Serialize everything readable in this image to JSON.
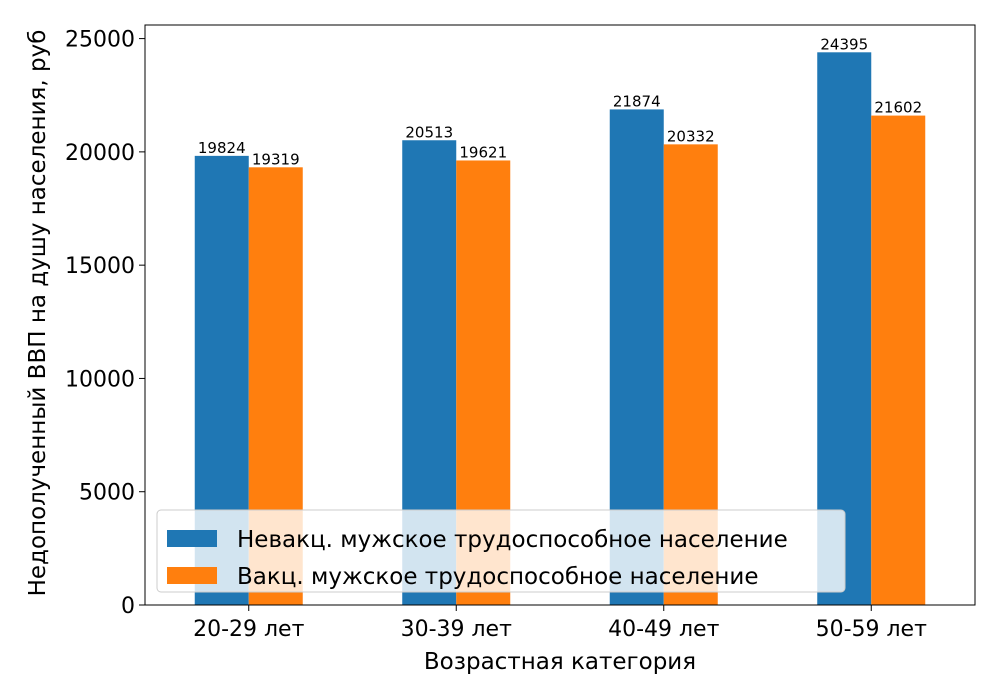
{
  "chart_data": {
    "type": "bar",
    "title": "",
    "xlabel": "Возрастная категория",
    "ylabel": "Недополученный ВВП на душу населения, руб",
    "categories": [
      "20-29 лет",
      "30-39 лет",
      "40-49 лет",
      "50-59 лет"
    ],
    "series": [
      {
        "name": "Невакц. мужское трудоспособное население",
        "color": "#1f77b4",
        "values": [
          19824,
          20513,
          21874,
          24395
        ]
      },
      {
        "name": "Вакц. мужское трудоспособное население",
        "color": "#ff7f0e",
        "values": [
          19319,
          19621,
          20332,
          21602
        ]
      }
    ],
    "ylim": [
      0,
      25600
    ],
    "yticks": [
      0,
      5000,
      10000,
      15000,
      20000,
      25000
    ],
    "grid": false,
    "legend_position": "lower-left"
  }
}
